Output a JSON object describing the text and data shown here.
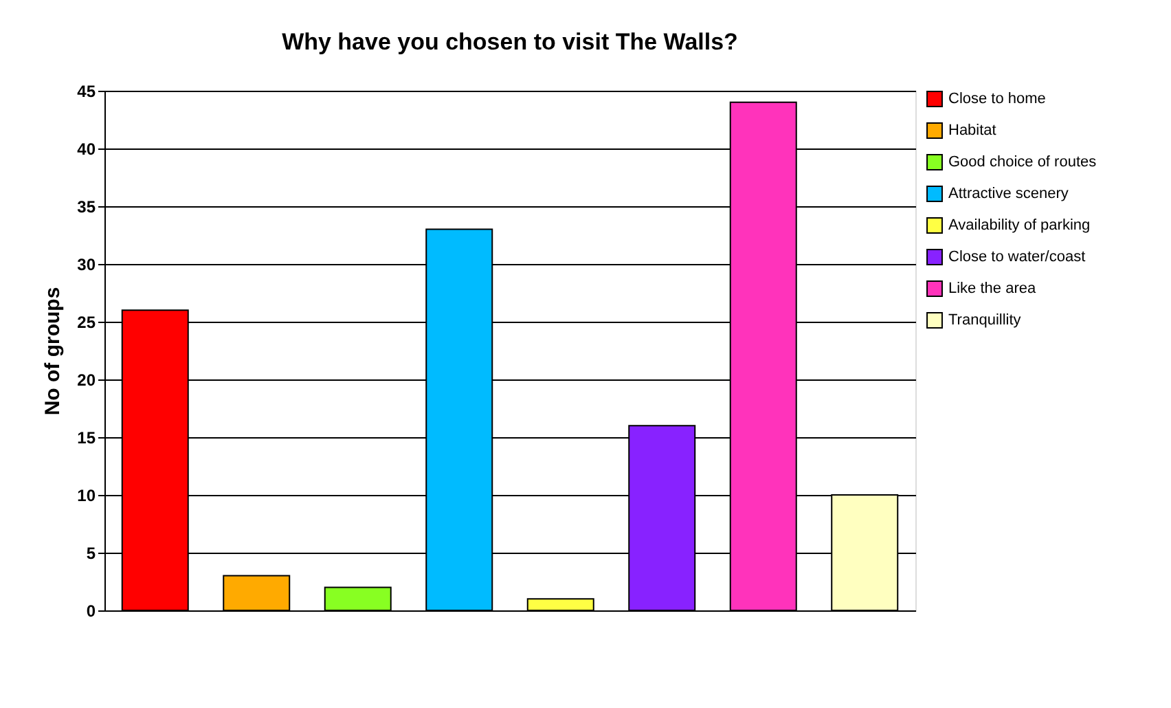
{
  "chart_data": {
    "type": "bar",
    "title": "Why have you chosen to visit The Walls?",
    "ylabel": "No of groups",
    "categories": [
      null,
      null,
      null,
      null,
      null,
      null,
      null,
      null
    ],
    "series": [
      {
        "name": "Close to home",
        "color": "#ff0000",
        "values": [
          26,
          null,
          null,
          null,
          null,
          null,
          null,
          null
        ]
      },
      {
        "name": "Habitat",
        "color": "#ffaa00",
        "values": [
          null,
          3,
          null,
          null,
          null,
          null,
          null,
          null
        ]
      },
      {
        "name": "Good choice of routes",
        "color": "#88ff22",
        "values": [
          null,
          null,
          2,
          null,
          null,
          null,
          null,
          null
        ]
      },
      {
        "name": "Attractive scenery",
        "color": "#00bbff",
        "values": [
          null,
          null,
          null,
          33,
          null,
          null,
          null,
          null
        ]
      },
      {
        "name": "Availability of parking",
        "color": "#ffff44",
        "values": [
          null,
          null,
          null,
          null,
          1,
          null,
          null,
          null
        ]
      },
      {
        "name": "Close to water/coast",
        "color": "#8822ff",
        "values": [
          null,
          null,
          null,
          null,
          null,
          16,
          null,
          null
        ]
      },
      {
        "name": "Like the area",
        "color": "#ff33bb",
        "values": [
          null,
          null,
          null,
          null,
          null,
          null,
          44,
          null
        ]
      },
      {
        "name": "Tranquillity",
        "color": "#ffffc0",
        "values": [
          null,
          null,
          null,
          null,
          null,
          null,
          null,
          10
        ]
      }
    ],
    "ylim": [
      0,
      45
    ],
    "yticks": [
      0,
      5,
      10,
      15,
      20,
      25,
      30,
      35,
      40,
      45
    ],
    "grid": "y",
    "legend": "right",
    "tick_labels": "y"
  }
}
